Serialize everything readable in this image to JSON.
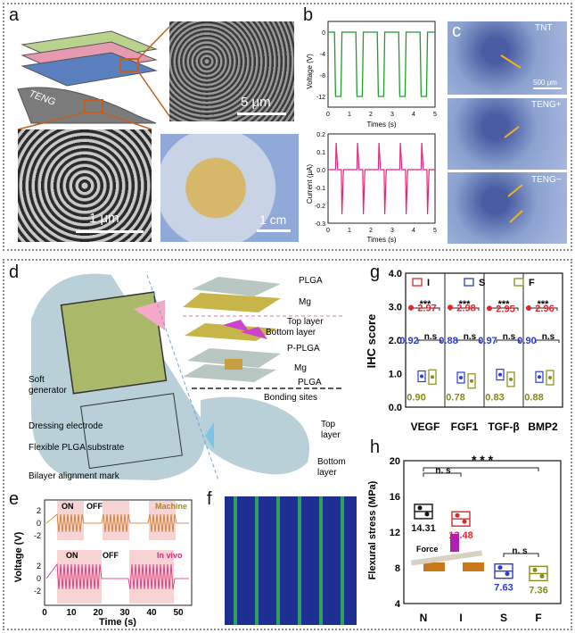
{
  "panels": {
    "a": "a",
    "b": "b",
    "c": "c",
    "d": "d",
    "e": "e",
    "f": "f",
    "g": "g",
    "h": "h"
  },
  "panel_a": {
    "teng_label": "TENG",
    "scale_sem": "5 μm",
    "scale_tube": "1 μm",
    "scale_photo": "1 cm"
  },
  "panel_b": {
    "voltage_ylabel": "Voltage (V)",
    "current_ylabel": "Current (μA)",
    "xlabel": "Times (s)",
    "voltage_yticks": [
      "0",
      "-4",
      "-8",
      "-12"
    ],
    "current_yticks": [
      "0.2",
      "0.1",
      "0.0",
      "-0.1",
      "-0.2",
      "-0.3"
    ],
    "xticks": [
      "0",
      "1",
      "2",
      "3",
      "4",
      "5"
    ]
  },
  "panel_c": {
    "labels": [
      "TNT",
      "TENG+",
      "TENG−"
    ],
    "scale": "500 μm"
  },
  "panel_d": {
    "labels": {
      "plga_top": "PLGA",
      "mg_top": "Mg",
      "top_layer": "Top layer",
      "bottom_layer": "Bottom layer",
      "pplga": "P-PLGA",
      "mg_bottom": "Mg",
      "plga_bottom": "PLGA",
      "bonding": "Bonding sites",
      "soft_gen": "Soft generator",
      "dressing": "Dressing electrode",
      "substrate": "Flexible PLGA substrate",
      "alignment": "Bilayer alignment mark",
      "top_layer_r": "Top layer",
      "bottom_layer_r": "Bottom layer"
    }
  },
  "panel_e": {
    "ylabel": "Voltage (V)",
    "xlabel": "Time (s)",
    "machine": "Machine",
    "invivo": "In vivo",
    "on1": "ON",
    "off1": "OFF",
    "on2": "ON",
    "off2": "OFF",
    "yticks_top": [
      "2",
      "0",
      "-2"
    ],
    "yticks_bottom": [
      "2",
      "0",
      "-2"
    ],
    "xticks": [
      "0",
      "10",
      "20",
      "30",
      "40",
      "50"
    ]
  },
  "panel_g": {
    "ylabel": "IHC score",
    "legend": [
      "I",
      "S",
      "F"
    ],
    "categories": [
      "VEGF",
      "FGF1",
      "TGF-β",
      "BMP2"
    ],
    "sig": "***",
    "ns": "n.s",
    "yticks": [
      "4.0",
      "3.0",
      "2.0",
      "1.0",
      "0.0"
    ]
  },
  "panel_h": {
    "ylabel": "Flexural stress (MPa)",
    "categories": [
      "N",
      "I",
      "S",
      "F"
    ],
    "ns1": "n. s",
    "ns2": "n. s",
    "sig": "* * *",
    "force": "Force",
    "yticks": [
      "20",
      "16",
      "12",
      "8",
      "4"
    ]
  },
  "chart_data": [
    {
      "type": "scatter",
      "panel": "g",
      "ylabel": "IHC score",
      "categories": [
        "VEGF",
        "FGF1",
        "TGF-β",
        "BMP2"
      ],
      "ylim": [
        0,
        4
      ],
      "series": [
        {
          "name": "I",
          "color": "#e0252a",
          "values": [
            2.97,
            2.98,
            2.95,
            2.96
          ]
        },
        {
          "name": "S",
          "color": "#2b3bd6",
          "values": [
            0.92,
            0.88,
            0.97,
            0.9
          ]
        },
        {
          "name": "F",
          "color": "#8a8a1a",
          "values": [
            0.9,
            0.78,
            0.83,
            0.88
          ]
        }
      ]
    },
    {
      "type": "scatter",
      "panel": "h",
      "ylabel": "Flexural stress (MPa)",
      "categories": [
        "N",
        "I",
        "S",
        "F"
      ],
      "ylim": [
        4,
        20
      ],
      "series": [
        {
          "name": "N",
          "color": "#111111",
          "values": [
            14.31
          ]
        },
        {
          "name": "I",
          "color": "#e0252a",
          "values": [
            13.48
          ]
        },
        {
          "name": "S",
          "color": "#2b3bd6",
          "values": [
            7.63
          ]
        },
        {
          "name": "F",
          "color": "#8a8a1a",
          "values": [
            7.36
          ]
        }
      ]
    },
    {
      "type": "line",
      "panel": "b-voltage",
      "xlabel": "Times (s)",
      "ylabel": "Voltage (V)",
      "xlim": [
        0,
        5
      ],
      "ylim": [
        -14,
        2
      ],
      "series": [
        {
          "color": "#1f9e2e",
          "x": [
            0,
            0.3,
            0.35,
            0.6,
            0.65,
            1.3,
            1.35,
            1.6,
            1.65,
            2.3,
            2.35,
            2.6,
            2.65,
            3.3,
            3.35,
            3.6,
            3.65,
            4.3,
            4.35,
            4.6,
            4.65,
            5
          ],
          "values": [
            0,
            0,
            -12,
            -12,
            0,
            0,
            -12,
            -12,
            0,
            0,
            -12,
            -12,
            0,
            0,
            -12,
            -12,
            0,
            0,
            -12,
            -12,
            0,
            0
          ]
        }
      ]
    },
    {
      "type": "line",
      "panel": "b-current",
      "xlabel": "Times (s)",
      "ylabel": "Current (μA)",
      "xlim": [
        0,
        5
      ],
      "ylim": [
        -0.3,
        0.2
      ],
      "series": [
        {
          "color": "#e0257a",
          "x": [
            0,
            0.35,
            0.38,
            0.45,
            0.62,
            0.65,
            0.72,
            1.35,
            1.38,
            1.45,
            1.62,
            1.65,
            1.72,
            2.35,
            2.38,
            2.45,
            2.62,
            2.65,
            2.72,
            3.35,
            3.38,
            3.45,
            3.62,
            3.65,
            3.72,
            4.35,
            4.38,
            4.45,
            4.62,
            4.65,
            4.72,
            5
          ],
          "values": [
            0,
            0,
            0.15,
            0,
            0,
            -0.25,
            0,
            0,
            0.15,
            0,
            0,
            -0.25,
            0,
            0,
            0.15,
            0,
            0,
            -0.25,
            0,
            0,
            0.15,
            0,
            0,
            -0.25,
            0,
            0,
            0.15,
            0,
            0,
            -0.25,
            0,
            0
          ]
        }
      ]
    }
  ]
}
